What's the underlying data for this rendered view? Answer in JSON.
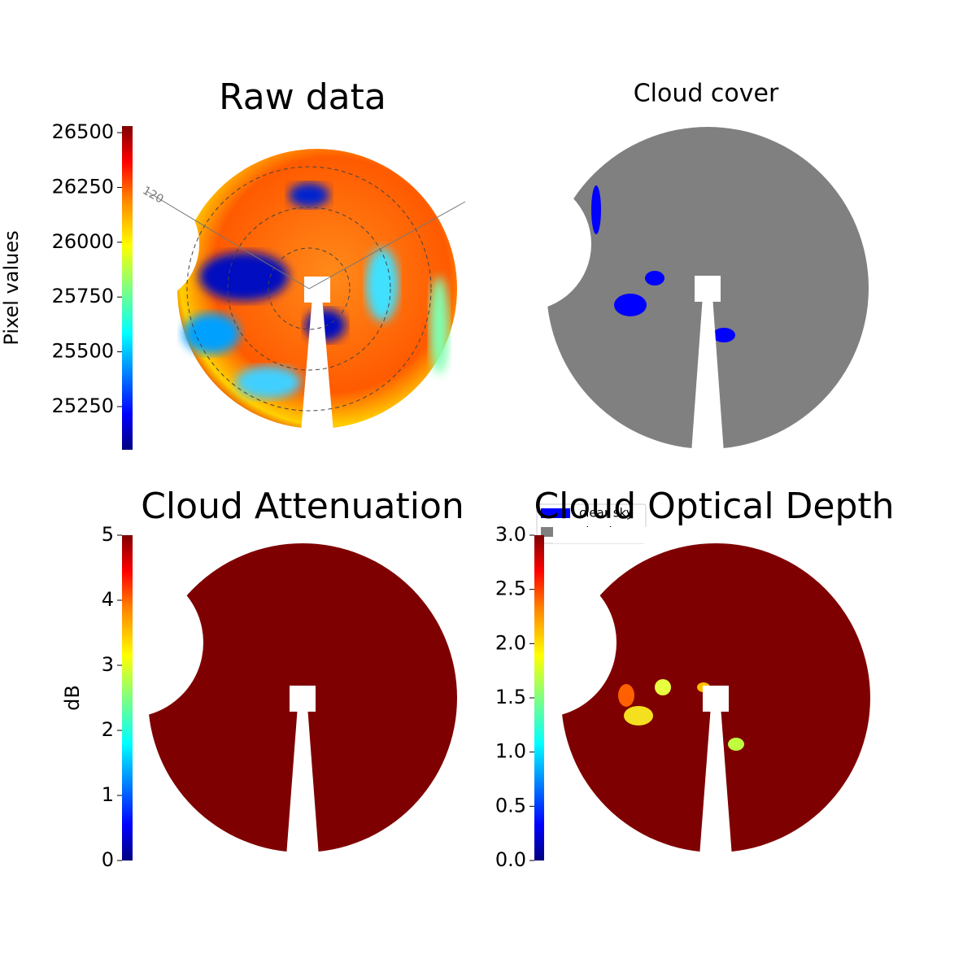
{
  "chart_data": [
    {
      "type": "image",
      "title": "Raw data",
      "colormap": "jet",
      "colorbar": {
        "label": "Pixel values",
        "lim": [
          25053,
          26530
        ],
        "ticks": [
          25250,
          25500,
          25750,
          26000,
          26250,
          26500
        ]
      },
      "annotations": [
        "120"
      ]
    },
    {
      "type": "image",
      "title": "Cloud cover",
      "series": [
        {
          "name": "clear sky",
          "color": "#0000ff"
        },
        {
          "name": "cloud",
          "color": "#808080"
        }
      ]
    },
    {
      "type": "image",
      "title": "Cloud Attenuation",
      "colormap": "jet",
      "colorbar": {
        "label": "dB",
        "lim": [
          0,
          5
        ],
        "ticks": [
          0,
          1,
          2,
          3,
          4,
          5
        ]
      }
    },
    {
      "type": "image",
      "title": "Cloud Optical Depth",
      "colormap": "jet",
      "colorbar": {
        "lim": [
          0,
          3
        ],
        "ticks": [
          {
            "value": 0,
            "label": "0.0"
          },
          {
            "value": 0.5,
            "label": "0.5"
          },
          {
            "value": 1,
            "label": "1.0"
          },
          {
            "value": 1.5,
            "label": "1.5"
          },
          {
            "value": 2,
            "label": "2.0"
          },
          {
            "value": 2.5,
            "label": "2.5"
          },
          {
            "value": 3,
            "label": "3.0"
          }
        ]
      }
    }
  ]
}
